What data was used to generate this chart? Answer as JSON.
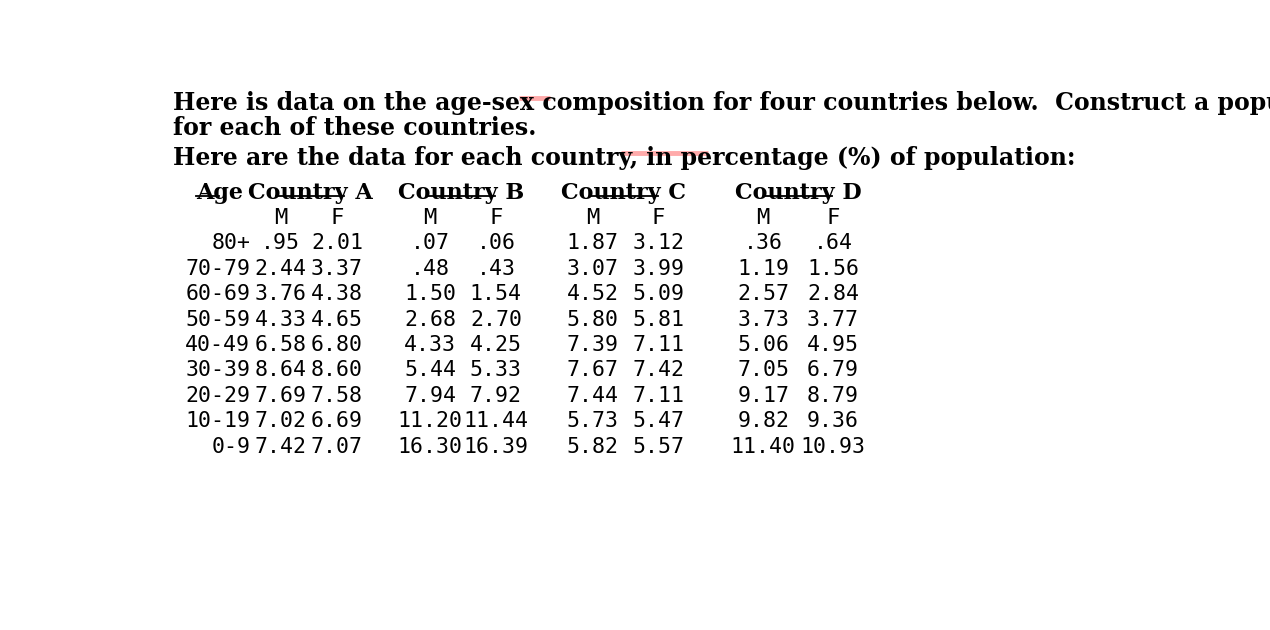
{
  "title_line1": "Here is data on the age-sex composition for four countries below.  Construct a population pyramid",
  "title_line2": "for each of these countries.",
  "subtitle": "Here are the data for each country, in percentage (%) of population:",
  "bg_color": "#ffffff",
  "text_color": "#000000",
  "underline_color": "#ffaaaa",
  "age_groups": [
    "80+",
    "70-79",
    "60-69",
    "50-59",
    "40-49",
    "30-39",
    "20-29",
    "10-19",
    "0-9"
  ],
  "country_A_M": [
    0.95,
    2.44,
    3.76,
    4.33,
    6.58,
    8.64,
    7.69,
    7.02,
    7.42
  ],
  "country_A_F": [
    2.01,
    3.37,
    4.38,
    4.65,
    6.8,
    8.6,
    7.58,
    6.69,
    7.07
  ],
  "country_B_M": [
    0.07,
    0.48,
    1.5,
    2.68,
    4.33,
    5.44,
    7.94,
    11.2,
    16.3
  ],
  "country_B_F": [
    0.06,
    0.43,
    1.54,
    2.7,
    4.25,
    5.33,
    7.92,
    11.44,
    16.39
  ],
  "country_C_M": [
    1.87,
    3.07,
    4.52,
    5.8,
    7.39,
    7.67,
    7.44,
    5.73,
    5.82
  ],
  "country_C_F": [
    3.12,
    3.99,
    5.09,
    5.81,
    7.11,
    7.42,
    7.11,
    5.47,
    5.57
  ],
  "country_D_M": [
    0.36,
    1.19,
    2.57,
    3.73,
    5.06,
    7.05,
    9.17,
    9.82,
    11.4
  ],
  "country_D_F": [
    0.64,
    1.56,
    2.84,
    3.77,
    4.95,
    6.79,
    8.79,
    9.36,
    10.93
  ],
  "title_fontsize": 17,
  "subtitle_fontsize": 17,
  "header_fontsize": 16,
  "table_fontsize": 15.5,
  "title_font": "DejaVu Serif",
  "table_font": "DejaVu Sans Mono"
}
